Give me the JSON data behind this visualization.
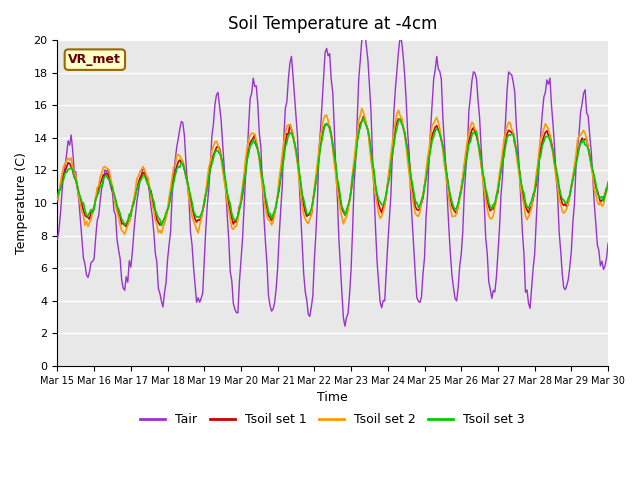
{
  "title": "Soil Temperature at -4cm",
  "xlabel": "Time",
  "ylabel": "Temperature (C)",
  "ylim": [
    0,
    20
  ],
  "yticks": [
    0,
    2,
    4,
    6,
    8,
    10,
    12,
    14,
    16,
    18,
    20
  ],
  "xlim": [
    0,
    360
  ],
  "xtick_positions": [
    0,
    24,
    48,
    72,
    96,
    120,
    144,
    168,
    192,
    216,
    240,
    264,
    288,
    312,
    336,
    360
  ],
  "xtick_labels": [
    "Mar 15",
    "Mar 16",
    "Mar 17",
    "Mar 18",
    "Mar 19",
    "Mar 20",
    "Mar 21",
    "Mar 22",
    "Mar 23",
    "Mar 24",
    "Mar 25",
    "Mar 26",
    "Mar 27",
    "Mar 28",
    "Mar 29",
    "Mar 30"
  ],
  "bg_color": "#e8e8e8",
  "grid_color": "#ffffff",
  "legend_labels": [
    "Tair",
    "Tsoil set 1",
    "Tsoil set 2",
    "Tsoil set 3"
  ],
  "legend_colors": [
    "#9933cc",
    "#cc0000",
    "#ff9900",
    "#00cc00"
  ],
  "annotation_text": "VR_met",
  "annotation_bg": "#ffffcc",
  "annotation_border": "#996600"
}
